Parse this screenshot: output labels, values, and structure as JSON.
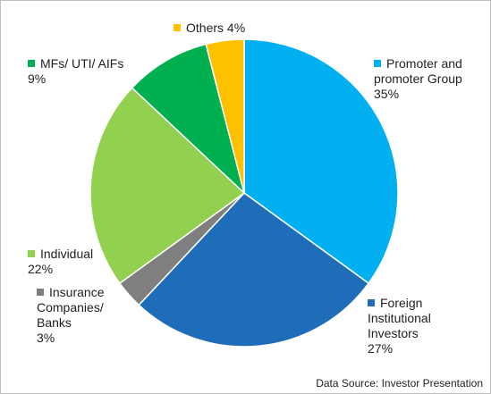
{
  "chart_data": {
    "type": "pie",
    "categories": [
      "Promoter and promoter Group",
      "Foreign Institutional Investors",
      "Insurance Companies/ Banks",
      "Individual",
      "MFs/ UTI/ AIFs",
      "Others"
    ],
    "values": [
      35,
      27,
      3,
      22,
      9,
      4
    ],
    "value_labels": [
      "35%",
      "27%",
      "3%",
      "22%",
      "9%",
      "4%"
    ],
    "colors": [
      "#00b0f0",
      "#1f6cb8",
      "#7f7f7f",
      "#92d050",
      "#00b050",
      "#ffc000"
    ],
    "source": "Data Source: Investor Presentation"
  }
}
